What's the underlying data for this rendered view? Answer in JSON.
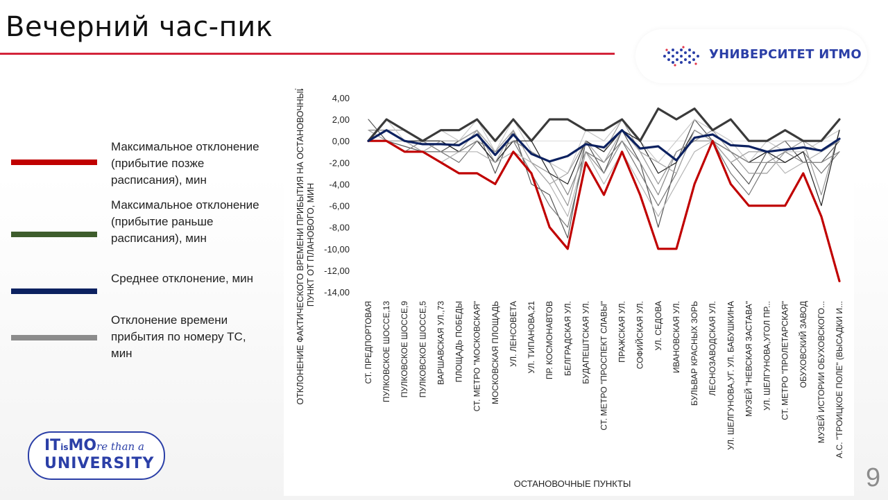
{
  "slide": {
    "title": "Вечерний час-пик",
    "page_number": "9",
    "logo_text": "УНИВЕРСИТЕТ ИТМО",
    "badge_line1_a": "IT",
    "badge_line1_small": "is",
    "badge_line1_b": "MO",
    "badge_line1_script": "re than a",
    "badge_line2": "UNIVERSITY",
    "accent_color": "#d3243a"
  },
  "legend": [
    {
      "label": "Максимальное отклонение (прибытие позже расписания), мин",
      "color": "#c00000"
    },
    {
      "label": "Максимальное отклонение (прибытие раньше расписания), мин",
      "color": "#3e5d2c"
    },
    {
      "label": "Среднее отклонение, мин",
      "color": "#0c2160"
    },
    {
      "label": "Отклонение времени прибытия по номеру ТС, мин",
      "color": "#8c8c8c"
    }
  ],
  "chart_data": {
    "type": "line",
    "xlabel": "ОСТАНОВОЧНЫЕ ПУНКТЫ",
    "ylabel": "ОТКЛОНЕНИЕ ФАКТИЧЕСКОГО ВРЕМЕНИ ПРИБЫТИЯ НА ОСТАНОВОЧНЫЙ ПУНКТ ОТ ПЛАНОВОГО, МИН",
    "ylim": [
      -14,
      4
    ],
    "yticks": [
      "4,00",
      "2,00",
      "0,00",
      "-2,00",
      "-4,00",
      "-6,00",
      "-8,00",
      "-10,00",
      "-12,00",
      "-14,00"
    ],
    "grid": false,
    "categories": [
      "СТ. ПРЕДПОРТОВАЯ",
      "ПУЛКОВСКОЕ ШОССЕ,13",
      "ПУЛКОВСКОЕ ШОССЕ,9",
      "ПУЛКОВСКОЕ ШОССЕ,5",
      "ВАРШАВСКАЯ УЛ.,73",
      "ПЛОЩАДЬ ПОБЕДЫ",
      "СТ. МЕТРО \"МОСКОВСКАЯ\"",
      "МОСКОВСКАЯ ПЛОЩАДЬ",
      "УЛ. ЛЕНСОВЕТА",
      "УЛ. ТИПАНОВА,21",
      "ПР. КОСМОНАВТОВ",
      "БЕЛГРАДСКАЯ УЛ.",
      "БУДАПЕШТСКАЯ УЛ.",
      "СТ. МЕТРО \"ПРОСПЕКТ СЛАВЫ\"",
      "ПРАЖСКАЯ УЛ.",
      "СОФИЙСКАЯ УЛ.",
      "УЛ. СЕДОВА",
      "ИВАНОВСКАЯ УЛ.",
      "БУЛЬВАР КРАСНЫХ ЗОРЬ",
      "ЛЕСНОЗАВОДСКАЯ УЛ.",
      "УЛ. ШЕЛГУНОВА,УГ. УЛ. БАБУШКИНА",
      "МУЗЕЙ \"НЕВСКАЯ ЗАСТАВА\"",
      "УЛ. ШЕЛГУНОВА,УГОЛ ПР...",
      "СТ. МЕТРО \"ПРОЛЕТАРСКАЯ\"",
      "ОБУХОВСКИЙ ЗАВОД",
      "МУЗЕЙ ИСТОРИИ ОБУХОВСКОГО...",
      "А.С. \"ТРОИЦКОЕ ПОЛЕ\" (ВЫСАДКИ И..."
    ],
    "series": [
      {
        "name": "Максимальное отклонение (прибытие позже расписания), мин",
        "role": "max_late",
        "color": "#c00000",
        "values": [
          0,
          0,
          -1,
          -1,
          -2,
          -3,
          -3,
          -4,
          -1,
          -3,
          -8,
          -10,
          -2,
          -5,
          -1,
          -5,
          -10,
          -10,
          -4,
          0,
          -4,
          -6,
          -6,
          -6,
          -3,
          -7,
          -13
        ]
      },
      {
        "name": "Максимальное отклонение (прибытие раньше расписания), мин",
        "role": "max_early",
        "color": "#3a3a3a",
        "values": [
          0,
          2,
          1,
          0,
          1,
          1,
          2,
          0,
          2,
          0,
          2,
          2,
          1,
          1,
          2,
          0,
          3,
          2,
          3,
          1,
          2,
          0,
          0,
          1,
          0,
          0,
          2
        ]
      },
      {
        "name": "Среднее отклонение, мин",
        "role": "mean",
        "color": "#0c2160",
        "values": [
          0,
          1,
          0,
          -0.3,
          -0.3,
          -0.4,
          0.6,
          -1.3,
          0.6,
          -1.2,
          -1.9,
          -1.4,
          -0.3,
          -0.6,
          1.0,
          -0.7,
          -0.5,
          -1.8,
          0.3,
          0.6,
          -0.4,
          -0.5,
          -1.0,
          -0.8,
          -0.6,
          -0.9,
          0.2
        ]
      },
      {
        "name": "Отклонение времени прибытия по номеру ТС, мин",
        "role": "vehicle",
        "color": "#555555",
        "values": [
          2,
          0,
          -0.5,
          -1,
          -1,
          0,
          1,
          -3,
          1,
          -4,
          -5,
          -9,
          0,
          -3,
          1,
          -2,
          -8,
          -2,
          2,
          0,
          -2,
          -4,
          -1,
          0,
          -2,
          -2,
          0
        ]
      },
      {
        "name": "Отклонение времени прибытия по номеру ТС, мин",
        "role": "vehicle",
        "color": "#777777",
        "values": [
          1,
          1,
          0,
          0,
          -1,
          -2,
          0,
          -2,
          0,
          -3,
          -6,
          -8,
          -1,
          -2,
          0,
          -3,
          -6,
          -3,
          1,
          0,
          -3,
          -5,
          -2,
          -2,
          -1,
          -3,
          -1
        ]
      },
      {
        "name": "Отклонение времени прибытия по номеру ТС, мин",
        "role": "vehicle",
        "color": "#999999",
        "values": [
          0,
          1,
          1,
          0,
          0,
          -1,
          1,
          -1,
          1,
          -2,
          -3,
          -6,
          0,
          -1,
          2,
          -1,
          -4,
          -1,
          0,
          1,
          -1,
          -3,
          -3,
          -1,
          0,
          -5,
          1
        ]
      },
      {
        "name": "Отклонение времени прибытия по номеру ТС, мин",
        "role": "vehicle",
        "color": "#b5b5b5",
        "values": [
          0,
          0,
          0,
          -1,
          -2,
          -1,
          -1,
          -2,
          -1,
          -2,
          -4,
          -7,
          -1,
          -4,
          -1,
          -4,
          -7,
          -4,
          -1,
          0,
          -2,
          -1,
          -1,
          -3,
          -2,
          -1,
          0
        ]
      },
      {
        "name": "Отклонение времени прибытия по номеру ТС, мин",
        "role": "vehicle",
        "color": "#c8c8c8",
        "values": [
          0,
          2,
          0,
          0,
          1,
          0,
          2,
          -1,
          2,
          -1,
          -2,
          -3,
          1,
          0,
          2,
          0,
          -2,
          0,
          2,
          1,
          0,
          -2,
          0,
          -1,
          -1,
          0,
          1
        ]
      },
      {
        "name": "Отклонение времени прибытия по номеру ТС, мин",
        "role": "vehicle",
        "color": "#222222",
        "values": [
          0,
          1,
          0,
          0,
          0,
          -1,
          0,
          -2,
          0,
          0,
          -3,
          -4,
          0,
          -1,
          1,
          0,
          -3,
          -2,
          1,
          0,
          -1,
          -2,
          -1,
          -2,
          -1,
          -6,
          1
        ]
      },
      {
        "name": "Отклонение времени прибытия по номеру ТС, мин",
        "role": "vehicle",
        "color": "#888888",
        "values": [
          0,
          0,
          -1,
          0,
          -1,
          -1,
          0,
          -1,
          0,
          -1,
          -2,
          -5,
          -1,
          -3,
          0,
          -2,
          -5,
          -1,
          0,
          0,
          -1,
          -2,
          -2,
          -1,
          -2,
          -2,
          -1
        ]
      },
      {
        "name": "Отклонение времени прибытия по номеру ТС, мин",
        "role": "vehicle",
        "color": "#a5a5a5",
        "values": [
          1,
          0,
          0,
          -1,
          0,
          0,
          1,
          -2,
          1,
          -2,
          -4,
          -3,
          0,
          -2,
          1,
          -1,
          -2,
          -3,
          1,
          0,
          -2,
          -1,
          -1,
          0,
          0,
          -1,
          0
        ]
      }
    ]
  }
}
